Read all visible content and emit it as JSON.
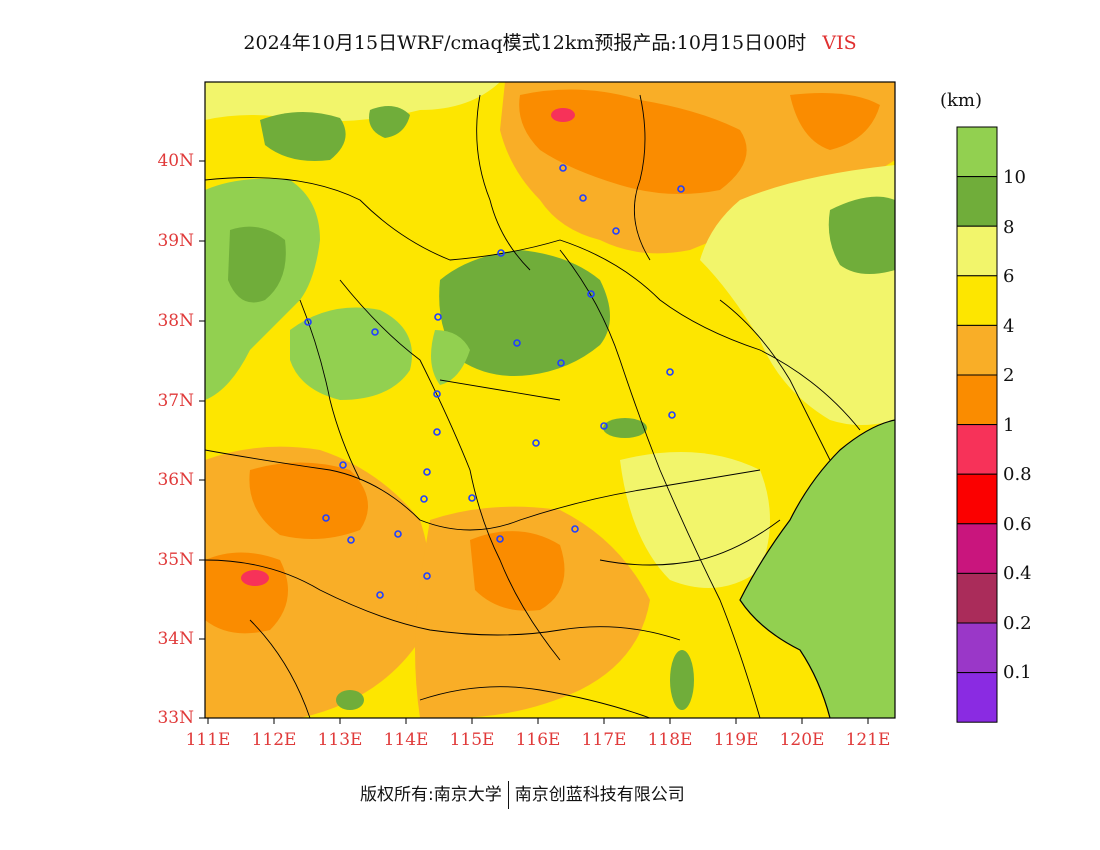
{
  "title": {
    "main": "2024年10月15日WRF/cmaq模式12km预报产品:10月15日00时",
    "variable": "VIS"
  },
  "map": {
    "lat_labels": [
      "40N",
      "39N",
      "38N",
      "37N",
      "36N",
      "35N",
      "34N",
      "33N"
    ],
    "lon_labels": [
      "111E",
      "112E",
      "113E",
      "114E",
      "115E",
      "116E",
      "117E",
      "118E",
      "119E",
      "120E",
      "121E"
    ],
    "station_marker": "station-circle-icon"
  },
  "legend": {
    "unit": "(km)",
    "levels": [
      {
        "label": "10",
        "color": "#92d050"
      },
      {
        "label": "8",
        "color": "#70ad3a"
      },
      {
        "label": "6",
        "color": "#f2f56b"
      },
      {
        "label": "4",
        "color": "#fde600"
      },
      {
        "label": "2",
        "color": "#f9ae27"
      },
      {
        "label": "1",
        "color": "#fa8c00"
      },
      {
        "label": "0.8",
        "color": "#f73259"
      },
      {
        "label": "0.6",
        "color": "#fb0000"
      },
      {
        "label": "0.4",
        "color": "#c9157d"
      },
      {
        "label": "0.2",
        "color": "#aa2c5a"
      },
      {
        "label": "0.1",
        "color": "#9a37c8"
      },
      {
        "label": "",
        "color": "#8a2be2"
      }
    ]
  },
  "footer": {
    "left": "版权所有:南京大学",
    "right": "南京创蓝科技有限公司"
  }
}
